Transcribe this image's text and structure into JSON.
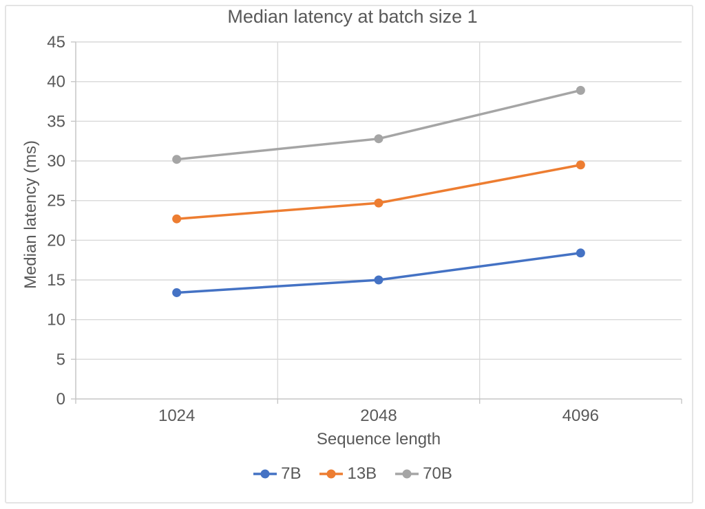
{
  "figure": {
    "background": "#ffffff",
    "border_color": "#e4e4e4"
  },
  "chart_data": {
    "type": "line",
    "title": "Median latency at batch size 1",
    "xlabel": "Sequence length",
    "ylabel": "Median latency (ms)",
    "categories": [
      "1024",
      "2048",
      "4096"
    ],
    "series": [
      {
        "name": "7B",
        "color": "#4472C4",
        "values": [
          13.4,
          15.0,
          18.4
        ]
      },
      {
        "name": "13B",
        "color": "#ED7D31",
        "values": [
          22.7,
          24.7,
          29.5
        ]
      },
      {
        "name": "70B",
        "color": "#A5A5A5",
        "values": [
          30.2,
          32.8,
          38.9
        ]
      }
    ],
    "ylim": [
      0,
      45
    ],
    "yticks": [
      0,
      5,
      10,
      15,
      20,
      25,
      30,
      35,
      40,
      45
    ],
    "grid": true,
    "marker": "circle",
    "legend_position": "bottom",
    "gridline_color": "#d9d9d9",
    "axis_line_color": "#c6c6c6",
    "text_color": "#595959"
  }
}
